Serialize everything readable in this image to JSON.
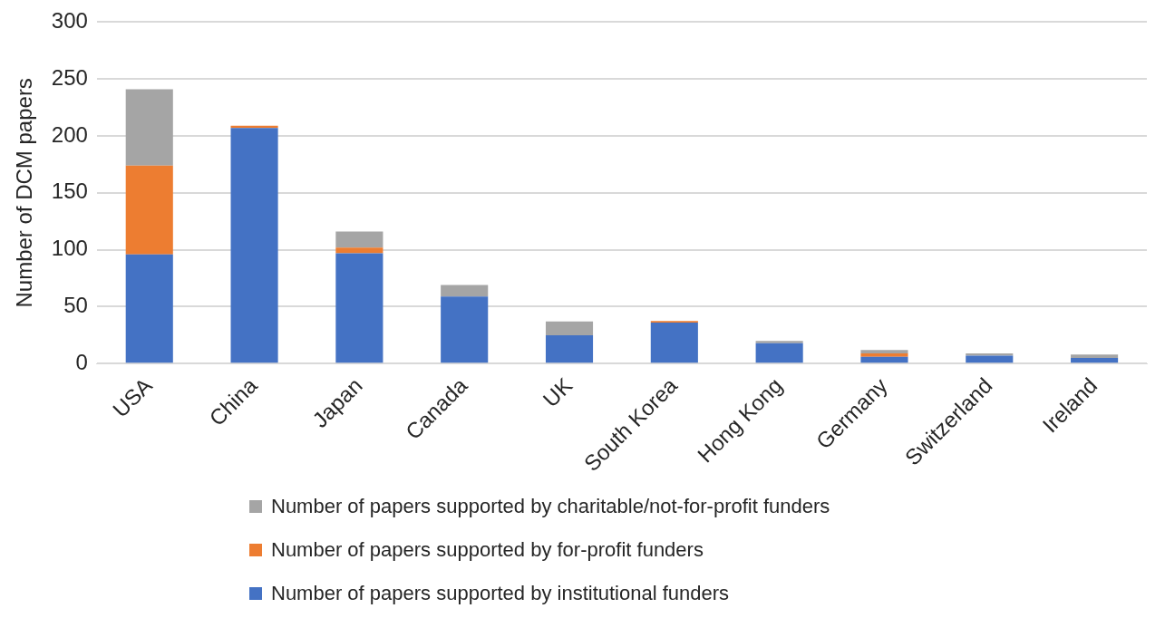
{
  "chart_data": {
    "type": "bar",
    "stacked": true,
    "ylabel": "Number of DCM papers",
    "categories": [
      "USA",
      "China",
      "Japan",
      "Canada",
      "UK",
      "South Korea",
      "Hong Kong",
      "Germany",
      "Switzerland",
      "Ireland"
    ],
    "series": [
      {
        "name": "Number of papers supported by institutional funders",
        "color": "#4472c4",
        "values": [
          96,
          207,
          97,
          59,
          25,
          36,
          18,
          6,
          7,
          5
        ]
      },
      {
        "name": "Number of papers supported by for-profit funders",
        "color": "#ed7d31",
        "values": [
          78,
          2,
          5,
          0,
          0,
          1.5,
          0,
          3,
          0,
          0
        ]
      },
      {
        "name": "Number of papers supported by charitable/not-for-profit funders",
        "color": "#a5a5a5",
        "values": [
          67,
          0,
          14,
          10,
          12,
          0,
          2,
          3,
          2,
          3
        ]
      }
    ],
    "ylim": [
      0,
      300
    ],
    "yticks": [
      0,
      50,
      100,
      150,
      200,
      250,
      300
    ],
    "grid": "y",
    "legend": "bottom"
  }
}
